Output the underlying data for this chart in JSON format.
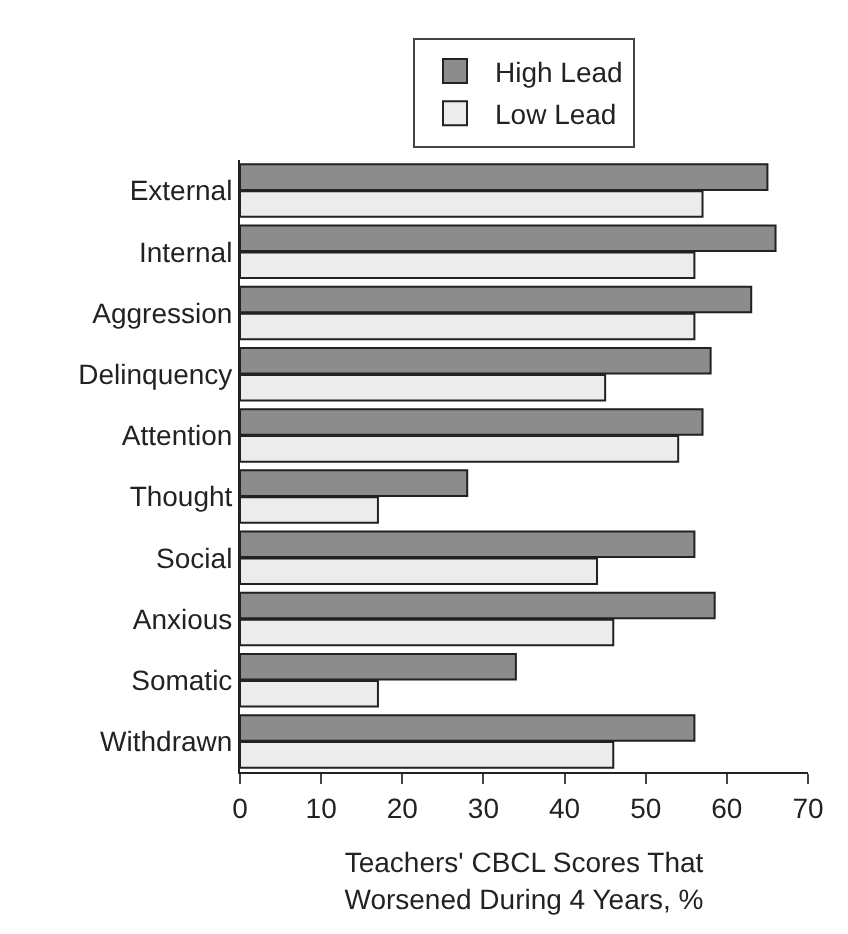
{
  "chart_data": {
    "type": "bar",
    "orientation": "horizontal",
    "categories": [
      "External",
      "Internal",
      "Aggression",
      "Delinquency",
      "Attention",
      "Thought",
      "Social",
      "Anxious",
      "Somatic",
      "Withdrawn"
    ],
    "series": [
      {
        "name": "High Lead",
        "color": "#8c8c8c",
        "values": [
          65,
          66,
          63,
          58,
          57,
          28,
          56,
          58.5,
          34,
          56
        ]
      },
      {
        "name": "Low Lead",
        "color": "#ececec",
        "values": [
          57,
          56,
          56,
          45,
          54,
          17,
          44,
          46,
          17,
          46
        ]
      }
    ],
    "xlabel": "Teachers' CBCL Scores That\nWorsened During 4 Years, %",
    "xlim": [
      0,
      70
    ],
    "xticks": [
      0,
      10,
      20,
      30,
      40,
      50,
      60,
      70
    ],
    "legend": "top"
  }
}
